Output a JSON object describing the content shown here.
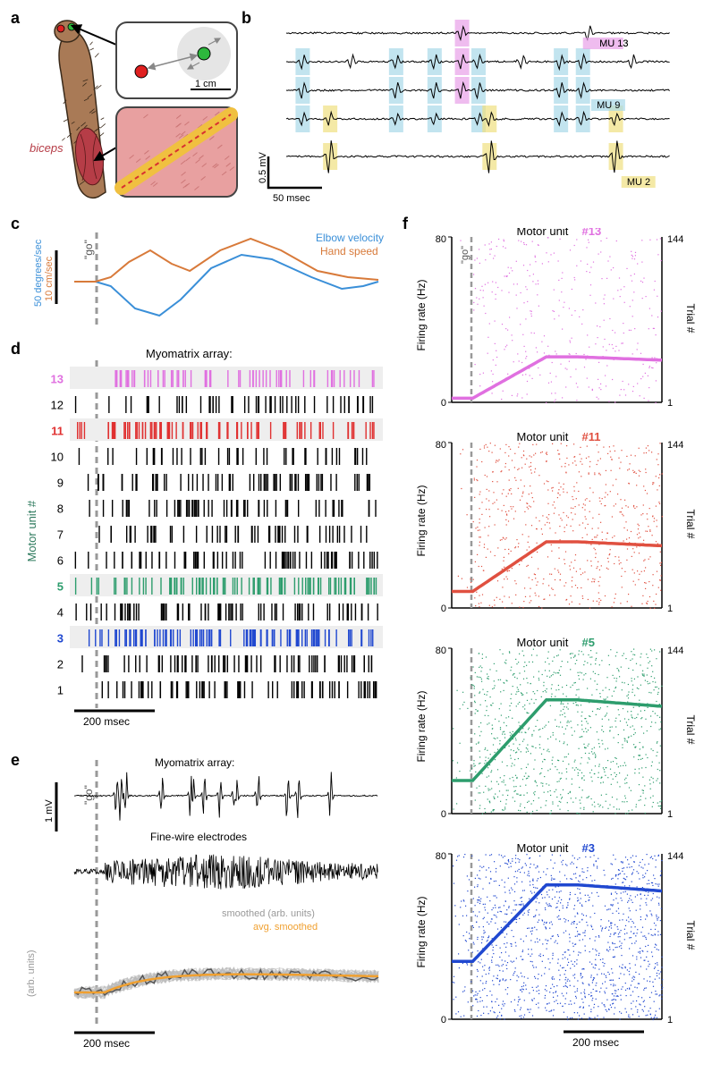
{
  "labels": {
    "a": "a",
    "b": "b",
    "c": "c",
    "d": "d",
    "e": "e",
    "f": "f"
  },
  "panel_a": {
    "biceps_label": "biceps",
    "scale": "1 cm",
    "target_colors": {
      "red": "#e02020",
      "green": "#2db83d"
    },
    "muscle_color": "#b63d47",
    "arm_color": "#a97a56",
    "electrode": {
      "bg": "#e8a0a0",
      "stripe": "#f0c040",
      "dash": "#d83030"
    }
  },
  "panel_b": {
    "scale_v": "0.5 mV",
    "scale_t": "50 msec",
    "units": [
      {
        "name": "MU 13",
        "color": "#e8a0e8",
        "highlights": [
          3.2
        ]
      },
      {
        "name": "MU 9",
        "color": "#a8d8e8",
        "highlights": [
          0.3,
          2.0,
          2.7,
          3.5,
          5.0,
          5.4
        ]
      },
      {
        "name": "MU 2",
        "color": "#f0e080",
        "highlights": [
          0.8,
          3.7,
          6.0
        ]
      }
    ],
    "n_channels": 5
  },
  "panel_c": {
    "go_label": "\"go\"",
    "scale_deg": "50 degrees/sec",
    "scale_cm": "10 cm/sec",
    "legend_elbow": "Elbow velocity",
    "legend_hand": "Hand speed",
    "elbow_color": "#3a8fd8",
    "hand_color": "#d87a3a"
  },
  "panel_d": {
    "title": "Myomatrix array:",
    "yaxis": "Motor unit #",
    "scale": "200 msec",
    "rows": [
      {
        "num": 13,
        "color": "#e070e0",
        "shade": true,
        "density": 0.5
      },
      {
        "num": 12,
        "color": "#000000",
        "shade": false,
        "density": 0.35
      },
      {
        "num": 11,
        "color": "#e03030",
        "shade": true,
        "density": 0.7
      },
      {
        "num": 10,
        "color": "#000000",
        "shade": false,
        "density": 0.25
      },
      {
        "num": 9,
        "color": "#000000",
        "shade": false,
        "density": 0.5
      },
      {
        "num": 8,
        "color": "#000000",
        "shade": false,
        "density": 0.45
      },
      {
        "num": 7,
        "color": "#000000",
        "shade": false,
        "density": 0.4
      },
      {
        "num": 6,
        "color": "#000000",
        "shade": false,
        "density": 0.55
      },
      {
        "num": 5,
        "color": "#2d9d6d",
        "shade": true,
        "density": 0.85
      },
      {
        "num": 4,
        "color": "#000000",
        "shade": false,
        "density": 0.6
      },
      {
        "num": 3,
        "color": "#2048d0",
        "shade": true,
        "density": 0.95
      },
      {
        "num": 2,
        "color": "#000000",
        "shade": false,
        "density": 0.55
      },
      {
        "num": 1,
        "color": "#000000",
        "shade": false,
        "density": 0.6
      }
    ],
    "shade_color": "#eeeeee"
  },
  "panel_e": {
    "go_label": "\"go\"",
    "myo_label": "Myomatrix array:",
    "fw_label": "Fine-wire electrodes",
    "scale_v": "1 mV",
    "scale": "200 msec",
    "smoothed": "smoothed (arb. units)",
    "avg": "avg. smoothed",
    "arb": "(arb. units)",
    "avg_color": "#f0a030",
    "trace_color": "#bbbbbb"
  },
  "panel_f": {
    "yaxis": "Firing rate (Hz)",
    "yaxis2": "Trial #",
    "go_label": "\"go\"",
    "ylim": [
      0,
      80
    ],
    "trial_lim": [
      1,
      144
    ],
    "scale": "200 msec",
    "scatter_points": 1400,
    "units": [
      {
        "num": 13,
        "title": "Motor unit",
        "color": "#e070e0",
        "baseline": 2,
        "peak": 22
      },
      {
        "num": 11,
        "title": "Motor unit",
        "color": "#e05040",
        "baseline": 8,
        "peak": 32
      },
      {
        "num": 5,
        "title": "Motor unit",
        "color": "#2d9d6d",
        "baseline": 16,
        "peak": 55
      },
      {
        "num": 3,
        "title": "Motor unit",
        "color": "#2048d0",
        "baseline": 28,
        "peak": 65
      }
    ]
  },
  "colors": {
    "go_dash": "#999999",
    "axis": "#000000"
  }
}
